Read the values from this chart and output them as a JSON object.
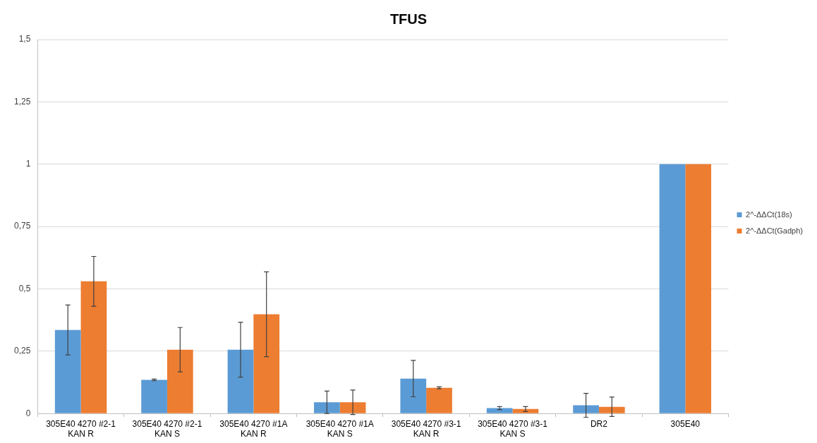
{
  "chart_data": {
    "type": "bar",
    "title": "TFUS",
    "categories": [
      "305E40 4270 #2-1 KAN R",
      "305E40 4270 #2-1 KAN S",
      "305E40 4270 #1A KAN R",
      "305E40 4270 #1A KAN S",
      "305E40 4270 #3-1 KAN R",
      "305E40 4270 #3-1 KAN S",
      "DR2",
      "305E40"
    ],
    "series": [
      {
        "name": "2^-ΔΔCt(18s)",
        "color": "#5b9bd5",
        "values": [
          0.335,
          0.135,
          0.256,
          0.045,
          0.14,
          0.022,
          0.033,
          1
        ],
        "errors": [
          0.1,
          0.003,
          0.11,
          0.045,
          0.073,
          0.006,
          0.048,
          null
        ]
      },
      {
        "name": "2^-ΔΔCt(Gadph)",
        "color": "#ed7d31",
        "values": [
          0.53,
          0.256,
          0.398,
          0.045,
          0.103,
          0.018,
          0.027,
          1
        ],
        "errors": [
          0.1,
          0.089,
          0.17,
          0.049,
          0.004,
          0.01,
          0.039,
          null
        ]
      }
    ],
    "ylim": [
      0,
      1.5
    ],
    "yticks": [
      0,
      {
        "value": 0.25,
        "label": "0,25"
      },
      {
        "value": 0.5,
        "label": "0,5"
      },
      {
        "value": 0.75,
        "label": "0,75"
      },
      1,
      {
        "value": 1.25,
        "label": "1,25"
      },
      {
        "value": 1.5,
        "label": "1,5"
      }
    ],
    "grid": "y",
    "legend": "right"
  }
}
